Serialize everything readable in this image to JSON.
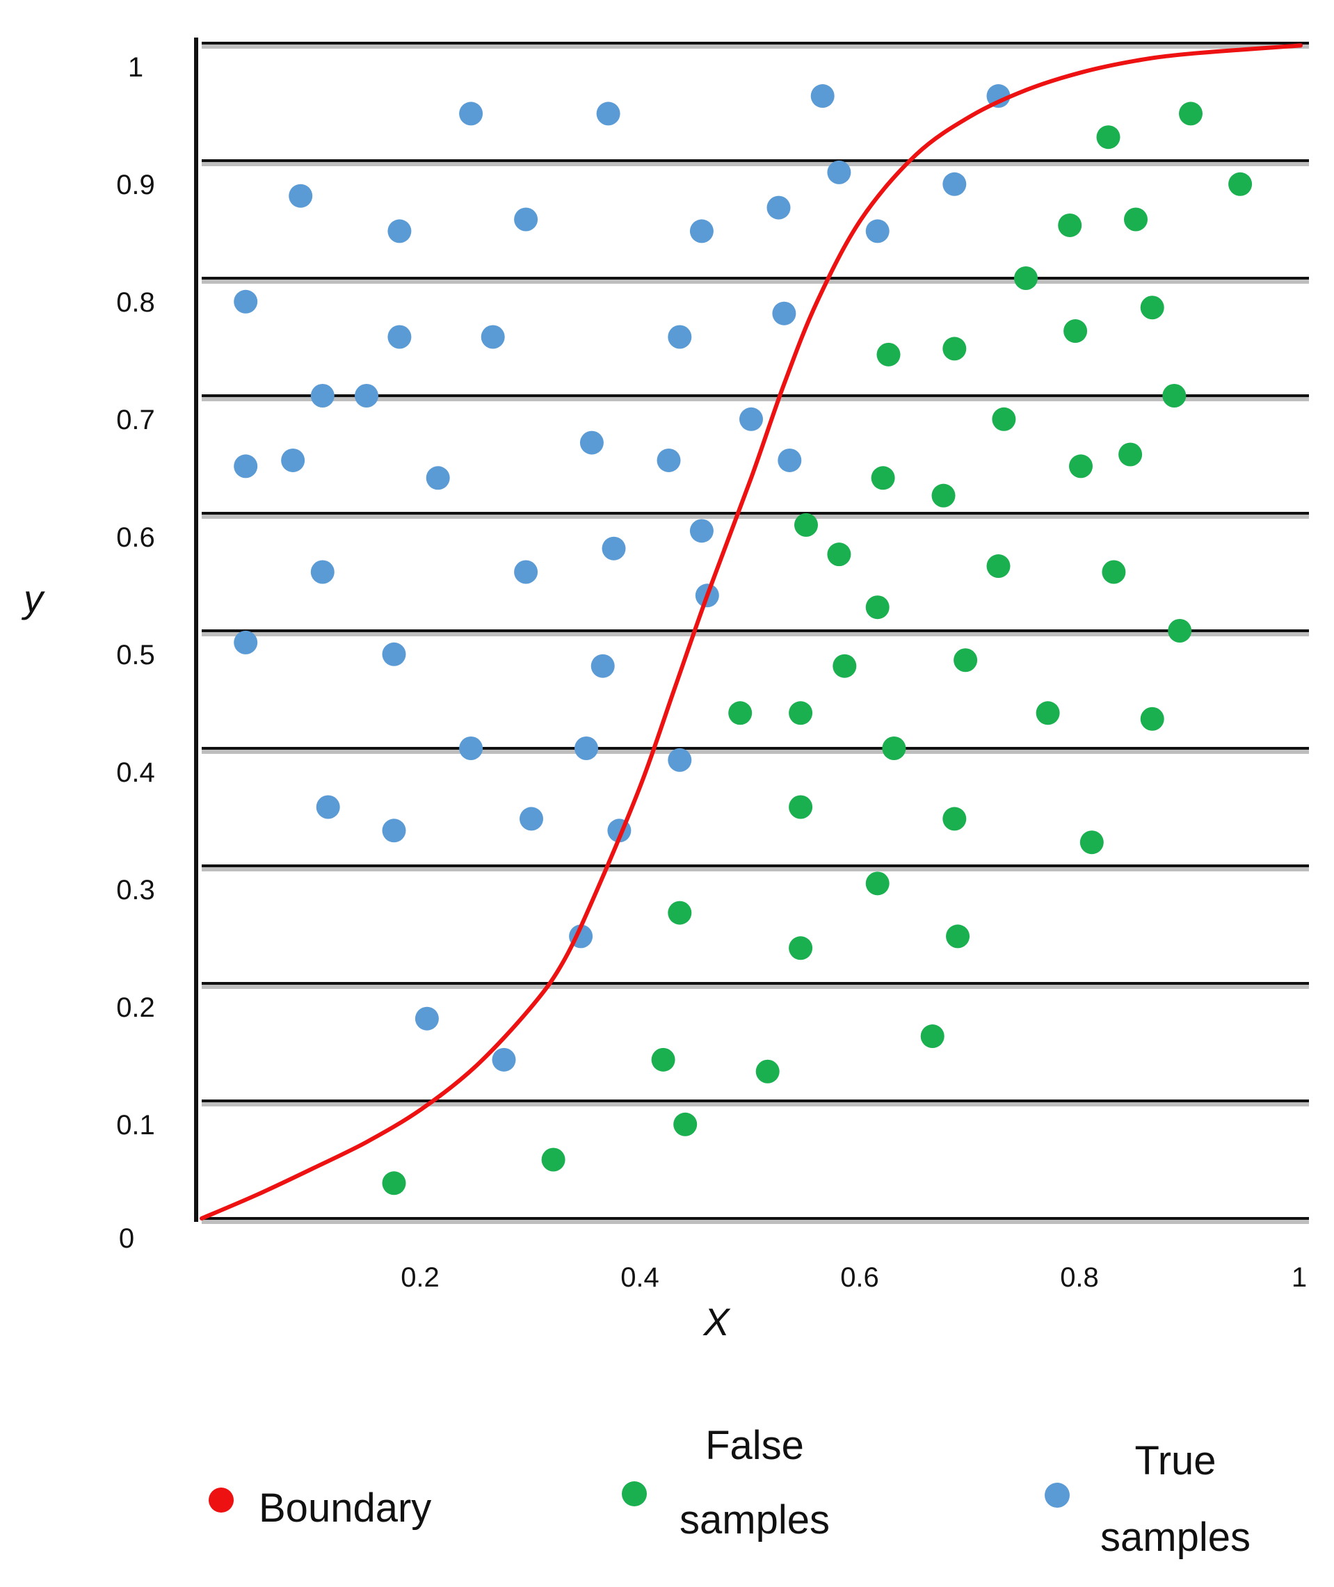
{
  "chart_data": {
    "type": "scatter",
    "title": "",
    "xlabel": "X",
    "ylabel": "y",
    "xlim": [
      0,
      1
    ],
    "ylim": [
      0,
      1
    ],
    "grid": "horizontal",
    "legend_position": "bottom",
    "x_ticks": [
      {
        "value": 0.2,
        "label": "0.2"
      },
      {
        "value": 0.4,
        "label": "0.4"
      },
      {
        "value": 0.6,
        "label": "0.6"
      },
      {
        "value": 0.8,
        "label": "0.8"
      },
      {
        "value": 1.0,
        "label": "1"
      }
    ],
    "y_ticks": [
      {
        "value": 0,
        "label": "0"
      },
      {
        "value": 0.1,
        "label": "0.1"
      },
      {
        "value": 0.2,
        "label": "0.2"
      },
      {
        "value": 0.3,
        "label": "0.3"
      },
      {
        "value": 0.4,
        "label": "0.4"
      },
      {
        "value": 0.5,
        "label": "0.5"
      },
      {
        "value": 0.6,
        "label": "0.6"
      },
      {
        "value": 0.7,
        "label": "0.7"
      },
      {
        "value": 0.8,
        "label": "0.8"
      },
      {
        "value": 0.9,
        "label": "0.9"
      },
      {
        "value": 1.0,
        "label": "1"
      }
    ],
    "colors": {
      "boundary": "#ee1111",
      "false_samples": "#1aaf4f",
      "true_samples": "#5b9bd5",
      "grid": "#111111",
      "grid_shadow": "#8a8a8a",
      "axis": "#111111"
    },
    "legend": [
      {
        "key": "boundary",
        "label": "Boundary"
      },
      {
        "key": "false_samples",
        "label": "False samples"
      },
      {
        "key": "true_samples",
        "label": "True samples"
      }
    ],
    "series": [
      {
        "name": "Boundary",
        "type": "line",
        "points": [
          [
            0.0,
            0.0
          ],
          [
            0.05,
            0.02
          ],
          [
            0.1,
            0.042
          ],
          [
            0.15,
            0.065
          ],
          [
            0.2,
            0.093
          ],
          [
            0.25,
            0.13
          ],
          [
            0.3,
            0.18
          ],
          [
            0.33,
            0.22
          ],
          [
            0.36,
            0.28
          ],
          [
            0.4,
            0.37
          ],
          [
            0.43,
            0.45
          ],
          [
            0.46,
            0.53
          ],
          [
            0.5,
            0.63
          ],
          [
            0.53,
            0.71
          ],
          [
            0.56,
            0.78
          ],
          [
            0.6,
            0.85
          ],
          [
            0.65,
            0.905
          ],
          [
            0.7,
            0.938
          ],
          [
            0.75,
            0.96
          ],
          [
            0.8,
            0.975
          ],
          [
            0.85,
            0.985
          ],
          [
            0.9,
            0.991
          ],
          [
            1.0,
            0.998
          ]
        ]
      },
      {
        "name": "True samples",
        "type": "scatter",
        "points": [
          [
            0.04,
            0.78
          ],
          [
            0.04,
            0.64
          ],
          [
            0.04,
            0.49
          ],
          [
            0.09,
            0.87
          ],
          [
            0.083,
            0.645
          ],
          [
            0.11,
            0.7
          ],
          [
            0.11,
            0.55
          ],
          [
            0.115,
            0.35
          ],
          [
            0.15,
            0.7
          ],
          [
            0.18,
            0.84
          ],
          [
            0.18,
            0.75
          ],
          [
            0.175,
            0.48
          ],
          [
            0.175,
            0.33
          ],
          [
            0.205,
            0.17
          ],
          [
            0.215,
            0.63
          ],
          [
            0.245,
            0.94
          ],
          [
            0.245,
            0.4
          ],
          [
            0.265,
            0.75
          ],
          [
            0.275,
            0.135
          ],
          [
            0.295,
            0.85
          ],
          [
            0.295,
            0.55
          ],
          [
            0.3,
            0.34
          ],
          [
            0.345,
            0.24
          ],
          [
            0.35,
            0.4
          ],
          [
            0.355,
            0.66
          ],
          [
            0.365,
            0.47
          ],
          [
            0.37,
            0.94
          ],
          [
            0.375,
            0.57
          ],
          [
            0.38,
            0.33
          ],
          [
            0.425,
            0.645
          ],
          [
            0.435,
            0.75
          ],
          [
            0.435,
            0.39
          ],
          [
            0.455,
            0.84
          ],
          [
            0.455,
            0.585
          ],
          [
            0.46,
            0.53
          ],
          [
            0.5,
            0.68
          ],
          [
            0.525,
            0.86
          ],
          [
            0.53,
            0.77
          ],
          [
            0.535,
            0.645
          ],
          [
            0.565,
            0.955
          ],
          [
            0.58,
            0.89
          ],
          [
            0.615,
            0.84
          ],
          [
            0.685,
            0.88
          ],
          [
            0.725,
            0.955
          ]
        ]
      },
      {
        "name": "False samples",
        "type": "scatter",
        "points": [
          [
            0.175,
            0.03
          ],
          [
            0.32,
            0.05
          ],
          [
            0.42,
            0.135
          ],
          [
            0.435,
            0.26
          ],
          [
            0.44,
            0.08
          ],
          [
            0.49,
            0.43
          ],
          [
            0.515,
            0.125
          ],
          [
            0.545,
            0.43
          ],
          [
            0.545,
            0.35
          ],
          [
            0.545,
            0.23
          ],
          [
            0.55,
            0.59
          ],
          [
            0.58,
            0.565
          ],
          [
            0.585,
            0.47
          ],
          [
            0.615,
            0.52
          ],
          [
            0.615,
            0.285
          ],
          [
            0.62,
            0.63
          ],
          [
            0.625,
            0.735
          ],
          [
            0.63,
            0.4
          ],
          [
            0.665,
            0.155
          ],
          [
            0.675,
            0.615
          ],
          [
            0.685,
            0.74
          ],
          [
            0.685,
            0.34
          ],
          [
            0.688,
            0.24
          ],
          [
            0.695,
            0.475
          ],
          [
            0.725,
            0.555
          ],
          [
            0.73,
            0.68
          ],
          [
            0.75,
            0.8
          ],
          [
            0.77,
            0.43
          ],
          [
            0.79,
            0.845
          ],
          [
            0.795,
            0.755
          ],
          [
            0.8,
            0.64
          ],
          [
            0.81,
            0.32
          ],
          [
            0.825,
            0.92
          ],
          [
            0.83,
            0.55
          ],
          [
            0.845,
            0.65
          ],
          [
            0.85,
            0.85
          ],
          [
            0.865,
            0.775
          ],
          [
            0.865,
            0.425
          ],
          [
            0.885,
            0.7
          ],
          [
            0.89,
            0.5
          ],
          [
            0.9,
            0.94
          ],
          [
            0.945,
            0.88
          ]
        ]
      }
    ]
  }
}
